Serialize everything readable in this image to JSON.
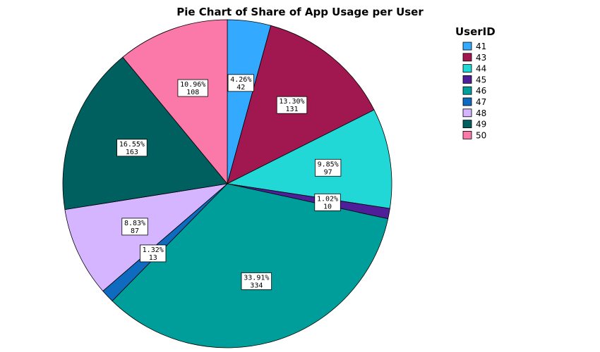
{
  "chart_data": {
    "type": "pie",
    "title": "Pie Chart of Share of App Usage per User",
    "legend_title": "UserID",
    "legend_position": "top-right",
    "slices": [
      {
        "name": "41",
        "value": 42,
        "percent_label": "4.26%",
        "color": "#33AAFF"
      },
      {
        "name": "43",
        "value": 131,
        "percent_label": "13.30%",
        "color": "#A0184F"
      },
      {
        "name": "44",
        "value": 97,
        "percent_label": "9.85%",
        "color": "#22D8D6"
      },
      {
        "name": "45",
        "value": 10,
        "percent_label": "1.02%",
        "color": "#4E1F99"
      },
      {
        "name": "46",
        "value": 334,
        "percent_label": "33.91%",
        "color": "#009E9A"
      },
      {
        "name": "47",
        "value": 13,
        "percent_label": "1.32%",
        "color": "#0E6BBF"
      },
      {
        "name": "48",
        "value": 87,
        "percent_label": "8.83%",
        "color": "#D5B5FF"
      },
      {
        "name": "49",
        "value": 163,
        "percent_label": "16.55%",
        "color": "#005F5F"
      },
      {
        "name": "50",
        "value": 108,
        "percent_label": "10.96%",
        "color": "#FA79A8"
      }
    ]
  }
}
